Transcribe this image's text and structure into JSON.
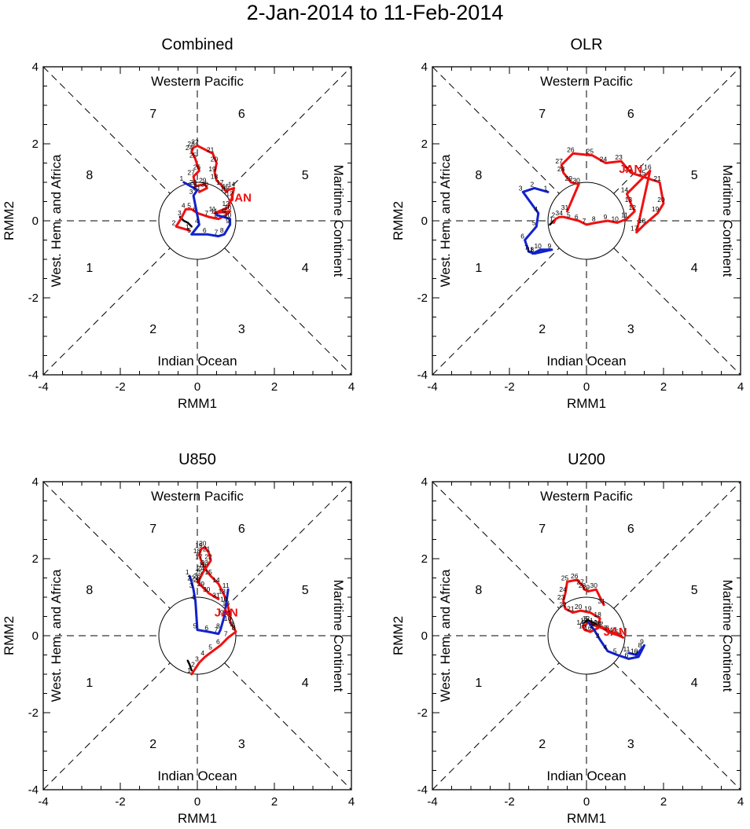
{
  "title": "2-Jan-2014 to 11-Feb-2014",
  "colors": {
    "jan": "#ee1111",
    "feb": "#1122cc",
    "pre": "#000000",
    "month_label": "#ee1111"
  },
  "common": {
    "xlabel": "RMM1",
    "ylabel": "RMM2",
    "xlim": [
      -4,
      4
    ],
    "ylim": [
      -4,
      4
    ],
    "ticks": [
      "-4",
      "-2",
      "0",
      "2",
      "4"
    ],
    "regions": {
      "top": "Western Pacific",
      "bottom": "Indian Ocean",
      "left": "West. Hem. and Africa",
      "right": "Maritime Continent"
    },
    "phases": [
      "1",
      "2",
      "3",
      "4",
      "5",
      "6",
      "7",
      "8"
    ],
    "unit_circle_radius": 1
  },
  "chart_data": [
    {
      "type": "line",
      "title": "Combined",
      "month_label": "JAN",
      "month_label_at": [
        1.1,
        0.5
      ],
      "series": [
        {
          "name": "pre",
          "color_key": "pre",
          "x": [
            -0.45,
            -0.35,
            -0.25,
            -0.15
          ],
          "y": [
            0.1,
            0.0,
            -0.05,
            -0.15
          ]
        },
        {
          "name": "January",
          "color_key": "jan",
          "days": [
            "1",
            "2",
            "3",
            "4",
            "5",
            "6",
            "7",
            "8",
            "9",
            "10",
            "11",
            "12",
            "13",
            "14",
            "15",
            "16",
            "17",
            "18",
            "19",
            "20",
            "21",
            "22",
            "23",
            "24",
            "25",
            "26",
            "27",
            "28",
            "29",
            "30",
            "31"
          ],
          "x": [
            -0.2,
            -0.55,
            -0.4,
            -0.3,
            -0.15,
            0.0,
            0.3,
            0.55,
            0.75,
            0.85,
            0.45,
            0.8,
            0.9,
            0.95,
            0.8,
            0.75,
            0.65,
            0.5,
            0.45,
            0.5,
            0.4,
            0.0,
            -0.1,
            -0.15,
            -0.05,
            0.05,
            -0.1,
            -0.05,
            0.2,
            0.25,
            0.05
          ],
          "y": [
            -0.25,
            -0.15,
            0.1,
            0.3,
            0.3,
            0.2,
            0.1,
            0.05,
            0.15,
            0.25,
            0.2,
            0.35,
            0.6,
            0.85,
            0.8,
            0.75,
            0.9,
            1.05,
            1.25,
            1.5,
            1.75,
            1.95,
            1.9,
            1.8,
            1.6,
            1.3,
            1.15,
            0.9,
            0.95,
            0.85,
            0.75
          ]
        },
        {
          "name": "February",
          "color_key": "feb",
          "days": [
            "1",
            "2",
            "3",
            "4",
            "5",
            "6",
            "7",
            "8",
            "9",
            "10",
            "11"
          ],
          "x": [
            -0.35,
            0.0,
            -0.1,
            0.05,
            -0.15,
            0.25,
            0.55,
            0.7,
            0.85,
            0.85,
            0.5
          ],
          "y": [
            1.0,
            0.8,
            0.65,
            -0.1,
            -0.35,
            -0.35,
            -0.4,
            -0.35,
            -0.1,
            0.05,
            0.15
          ]
        }
      ]
    },
    {
      "type": "line",
      "title": "OLR",
      "month_label": "JAN",
      "month_label_at": [
        1.15,
        1.25
      ],
      "series": [
        {
          "name": "pre",
          "color_key": "pre",
          "x": [
            -0.95,
            -0.85,
            -0.8
          ],
          "y": [
            -0.1,
            0.0,
            0.05
          ]
        },
        {
          "name": "January",
          "color_key": "jan",
          "days": [
            "1",
            "2",
            "3",
            "4",
            "5",
            "6",
            "7",
            "8",
            "9",
            "10",
            "11",
            "12",
            "13",
            "14",
            "15",
            "16",
            "17",
            "18",
            "19",
            "20",
            "21",
            "22",
            "23",
            "24",
            "25",
            "26",
            "27",
            "28",
            "29",
            "30",
            "31"
          ],
          "x": [
            -0.85,
            -0.8,
            -0.7,
            -0.6,
            -0.4,
            -0.2,
            0.0,
            0.25,
            0.55,
            0.8,
            1.05,
            1.25,
            1.15,
            1.05,
            1.5,
            1.65,
            1.3,
            1.5,
            1.85,
            2.0,
            1.9,
            1.15,
            0.9,
            0.5,
            0.15,
            -0.35,
            -0.65,
            -0.6,
            -0.4,
            -0.2,
            -0.5
          ],
          "y": [
            -0.05,
            0.05,
            0.1,
            0.1,
            0.05,
            0.0,
            -0.1,
            -0.05,
            0.0,
            -0.05,
            0.05,
            0.25,
            0.45,
            0.7,
            1.15,
            1.3,
            -0.3,
            -0.1,
            0.2,
            0.45,
            1.0,
            1.25,
            1.55,
            1.5,
            1.7,
            1.75,
            1.45,
            1.25,
            1.0,
            0.95,
            0.25
          ]
        },
        {
          "name": "February",
          "color_key": "feb",
          "days": [
            "1",
            "2",
            "3",
            "4",
            "5",
            "6",
            "7",
            "8",
            "9",
            "10",
            "11"
          ],
          "x": [
            -1.0,
            -1.35,
            -1.65,
            -1.25,
            -1.3,
            -1.6,
            -1.5,
            -1.35,
            -0.9,
            -1.2,
            -1.4
          ],
          "y": [
            0.75,
            0.85,
            0.75,
            0.2,
            -0.15,
            -0.5,
            -0.8,
            -0.85,
            -0.75,
            -0.75,
            -0.85
          ]
        }
      ]
    },
    {
      "type": "line",
      "title": "U850",
      "month_label": "JAN",
      "month_label_at": [
        0.75,
        0.5
      ],
      "series": [
        {
          "name": "pre",
          "color_key": "pre",
          "x": [
            -0.25,
            -0.2,
            -0.15
          ],
          "y": [
            -0.65,
            -0.75,
            -0.9
          ]
        },
        {
          "name": "January",
          "color_key": "jan",
          "days": [
            "1",
            "2",
            "3",
            "4",
            "5",
            "6",
            "7",
            "8",
            "9",
            "10",
            "11",
            "12",
            "13",
            "14",
            "15",
            "16",
            "17",
            "18",
            "19",
            "20",
            "21",
            "22",
            "23",
            "24",
            "25",
            "26",
            "27",
            "28",
            "29",
            "30",
            "31"
          ],
          "x": [
            -0.15,
            -0.05,
            0.05,
            0.2,
            0.4,
            0.6,
            0.8,
            1.0,
            0.95,
            0.85,
            0.85,
            0.8,
            0.7,
            0.55,
            0.35,
            0.2,
            0.1,
            0.05,
            0.1,
            0.2,
            0.3,
            0.35,
            0.25,
            0.15,
            0.1,
            0.05,
            0.0,
            0.05,
            0.15,
            0.3,
            0.55
          ],
          "y": [
            -1.0,
            -0.85,
            -0.7,
            -0.55,
            -0.4,
            -0.25,
            -0.05,
            0.1,
            0.2,
            0.35,
            0.5,
            0.75,
            1.05,
            1.35,
            1.55,
            1.75,
            1.95,
            2.1,
            2.25,
            2.3,
            2.15,
            1.95,
            1.8,
            1.65,
            1.55,
            1.45,
            1.4,
            1.35,
            1.25,
            1.1,
            0.95
          ]
        },
        {
          "name": "February",
          "color_key": "feb",
          "days": [
            "1",
            "2",
            "3",
            "4",
            "5",
            "6",
            "7",
            "8",
            "9",
            "10",
            "11"
          ],
          "x": [
            -0.2,
            -0.15,
            -0.1,
            -0.05,
            0.0,
            0.3,
            0.55,
            0.6,
            0.7,
            0.75,
            0.8
          ],
          "y": [
            1.55,
            1.4,
            1.2,
            0.9,
            0.15,
            0.1,
            0.05,
            0.15,
            0.5,
            0.85,
            1.2
          ]
        }
      ]
    },
    {
      "type": "line",
      "title": "U200",
      "month_label": "JAN",
      "month_label_at": [
        0.75,
        0.0
      ],
      "series": [
        {
          "name": "pre",
          "color_key": "pre",
          "x": [
            -0.05,
            0.05,
            0.15,
            0.25
          ],
          "y": [
            0.35,
            0.4,
            0.35,
            0.3
          ]
        },
        {
          "name": "January",
          "color_key": "jan",
          "days": [
            "1",
            "2",
            "3",
            "4",
            "5",
            "6",
            "7",
            "8",
            "9",
            "10",
            "11",
            "12",
            "13",
            "14",
            "15",
            "16",
            "17",
            "18",
            "19",
            "20",
            "21",
            "22",
            "23",
            "24",
            "25",
            "26",
            "27",
            "28",
            "29",
            "30",
            "31"
          ],
          "x": [
            0.3,
            0.45,
            0.55,
            0.7,
            0.85,
            0.95,
            0.8,
            0.6,
            0.4,
            0.25,
            0.15,
            0.05,
            0.0,
            -0.1,
            -0.05,
            0.1,
            0.3,
            0.35,
            0.1,
            -0.15,
            -0.35,
            -0.55,
            -0.6,
            -0.55,
            -0.5,
            -0.25,
            -0.1,
            -0.05,
            0.05,
            0.25,
            0.45
          ],
          "y": [
            0.25,
            0.2,
            0.1,
            0.05,
            0.0,
            -0.05,
            0.05,
            0.1,
            0.2,
            0.25,
            0.3,
            0.35,
            0.3,
            0.25,
            0.15,
            0.1,
            0.2,
            0.45,
            0.6,
            0.65,
            0.6,
            0.7,
            0.9,
            1.1,
            1.4,
            1.45,
            1.3,
            1.2,
            1.15,
            1.2,
            0.8
          ]
        },
        {
          "name": "February",
          "color_key": "feb",
          "days": [
            "1",
            "2",
            "3",
            "4",
            "5",
            "6",
            "7",
            "8",
            "9",
            "10",
            "11"
          ],
          "x": [
            0.05,
            0.2,
            0.35,
            0.55,
            0.8,
            1.1,
            1.35,
            1.45,
            1.5,
            1.3,
            1.1
          ],
          "y": [
            0.35,
            0.15,
            -0.1,
            -0.4,
            -0.5,
            -0.6,
            -0.55,
            -0.35,
            -0.25,
            -0.5,
            -0.45
          ]
        }
      ]
    }
  ]
}
